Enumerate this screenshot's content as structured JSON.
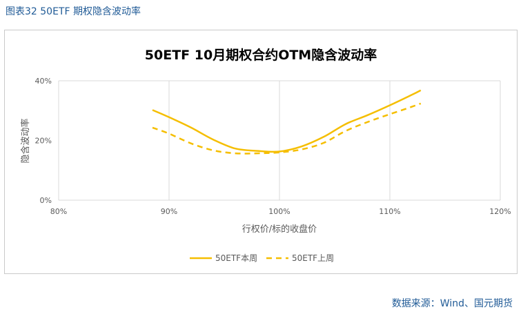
{
  "caption": "图表32 50ETF 期权隐含波动率",
  "source": "数据来源：Wind、国元期货",
  "colors": {
    "accent": "#F5BE00",
    "caption": "#1F5A96",
    "grid": "#D9D9D9",
    "axis_text": "#595959"
  },
  "chart_data": {
    "type": "line",
    "title": "50ETF 10月期权合约OTM隐含波动率",
    "xlabel": "行权价/标的收盘价",
    "ylabel": "隐含波动率",
    "xlim": [
      0.8,
      1.2
    ],
    "ylim": [
      0,
      0.4
    ],
    "x_ticks": [
      0.8,
      0.9,
      1.0,
      1.1,
      1.2
    ],
    "x_tick_labels": [
      "80%",
      "90%",
      "100%",
      "110%",
      "120%"
    ],
    "y_ticks": [
      0,
      0.2,
      0.4
    ],
    "y_tick_labels": [
      "0%",
      "20%",
      "40%"
    ],
    "grid": "vertical",
    "legend_position": "bottom",
    "series": [
      {
        "name": "50ETF本周",
        "style": "solid",
        "x": [
          0.885,
          0.9,
          0.92,
          0.94,
          0.96,
          0.98,
          1.0,
          1.02,
          1.04,
          1.06,
          1.08,
          1.1,
          1.12,
          1.128
        ],
        "y": [
          0.302,
          0.278,
          0.243,
          0.203,
          0.173,
          0.165,
          0.163,
          0.18,
          0.212,
          0.255,
          0.285,
          0.318,
          0.353,
          0.368
        ]
      },
      {
        "name": "50ETF上周",
        "style": "dashed",
        "x": [
          0.885,
          0.9,
          0.92,
          0.94,
          0.96,
          0.98,
          1.0,
          1.02,
          1.04,
          1.06,
          1.08,
          1.1,
          1.12,
          1.128
        ],
        "y": [
          0.243,
          0.223,
          0.19,
          0.167,
          0.157,
          0.157,
          0.16,
          0.17,
          0.192,
          0.232,
          0.262,
          0.288,
          0.313,
          0.324
        ]
      }
    ]
  }
}
